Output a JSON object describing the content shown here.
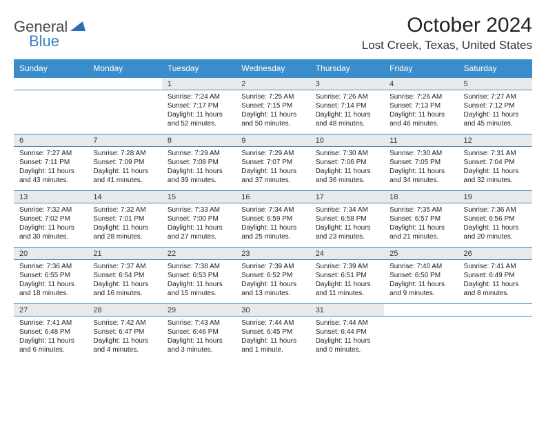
{
  "logo": {
    "text1": "General",
    "text2": "Blue"
  },
  "title": "October 2024",
  "location": "Lost Creek, Texas, United States",
  "colors": {
    "header_bg": "#3a8ccb",
    "header_text": "#ffffff",
    "date_bg": "#e9e9e9",
    "border": "#3a8ccb",
    "logo_gray": "#4a4a4a",
    "logo_blue": "#3a7fc4"
  },
  "fonts": {
    "title_size": 30,
    "location_size": 17,
    "header_size": 12,
    "datenum_size": 11,
    "detail_size": 10
  },
  "day_headers": [
    "Sunday",
    "Monday",
    "Tuesday",
    "Wednesday",
    "Thursday",
    "Friday",
    "Saturday"
  ],
  "weeks": [
    [
      {
        "num": "",
        "lines": [
          "",
          "",
          "",
          ""
        ]
      },
      {
        "num": "",
        "lines": [
          "",
          "",
          "",
          ""
        ]
      },
      {
        "num": "1",
        "lines": [
          "Sunrise: 7:24 AM",
          "Sunset: 7:17 PM",
          "Daylight: 11 hours",
          "and 52 minutes."
        ]
      },
      {
        "num": "2",
        "lines": [
          "Sunrise: 7:25 AM",
          "Sunset: 7:15 PM",
          "Daylight: 11 hours",
          "and 50 minutes."
        ]
      },
      {
        "num": "3",
        "lines": [
          "Sunrise: 7:26 AM",
          "Sunset: 7:14 PM",
          "Daylight: 11 hours",
          "and 48 minutes."
        ]
      },
      {
        "num": "4",
        "lines": [
          "Sunrise: 7:26 AM",
          "Sunset: 7:13 PM",
          "Daylight: 11 hours",
          "and 46 minutes."
        ]
      },
      {
        "num": "5",
        "lines": [
          "Sunrise: 7:27 AM",
          "Sunset: 7:12 PM",
          "Daylight: 11 hours",
          "and 45 minutes."
        ]
      }
    ],
    [
      {
        "num": "6",
        "lines": [
          "Sunrise: 7:27 AM",
          "Sunset: 7:11 PM",
          "Daylight: 11 hours",
          "and 43 minutes."
        ]
      },
      {
        "num": "7",
        "lines": [
          "Sunrise: 7:28 AM",
          "Sunset: 7:09 PM",
          "Daylight: 11 hours",
          "and 41 minutes."
        ]
      },
      {
        "num": "8",
        "lines": [
          "Sunrise: 7:29 AM",
          "Sunset: 7:08 PM",
          "Daylight: 11 hours",
          "and 39 minutes."
        ]
      },
      {
        "num": "9",
        "lines": [
          "Sunrise: 7:29 AM",
          "Sunset: 7:07 PM",
          "Daylight: 11 hours",
          "and 37 minutes."
        ]
      },
      {
        "num": "10",
        "lines": [
          "Sunrise: 7:30 AM",
          "Sunset: 7:06 PM",
          "Daylight: 11 hours",
          "and 36 minutes."
        ]
      },
      {
        "num": "11",
        "lines": [
          "Sunrise: 7:30 AM",
          "Sunset: 7:05 PM",
          "Daylight: 11 hours",
          "and 34 minutes."
        ]
      },
      {
        "num": "12",
        "lines": [
          "Sunrise: 7:31 AM",
          "Sunset: 7:04 PM",
          "Daylight: 11 hours",
          "and 32 minutes."
        ]
      }
    ],
    [
      {
        "num": "13",
        "lines": [
          "Sunrise: 7:32 AM",
          "Sunset: 7:02 PM",
          "Daylight: 11 hours",
          "and 30 minutes."
        ]
      },
      {
        "num": "14",
        "lines": [
          "Sunrise: 7:32 AM",
          "Sunset: 7:01 PM",
          "Daylight: 11 hours",
          "and 28 minutes."
        ]
      },
      {
        "num": "15",
        "lines": [
          "Sunrise: 7:33 AM",
          "Sunset: 7:00 PM",
          "Daylight: 11 hours",
          "and 27 minutes."
        ]
      },
      {
        "num": "16",
        "lines": [
          "Sunrise: 7:34 AM",
          "Sunset: 6:59 PM",
          "Daylight: 11 hours",
          "and 25 minutes."
        ]
      },
      {
        "num": "17",
        "lines": [
          "Sunrise: 7:34 AM",
          "Sunset: 6:58 PM",
          "Daylight: 11 hours",
          "and 23 minutes."
        ]
      },
      {
        "num": "18",
        "lines": [
          "Sunrise: 7:35 AM",
          "Sunset: 6:57 PM",
          "Daylight: 11 hours",
          "and 21 minutes."
        ]
      },
      {
        "num": "19",
        "lines": [
          "Sunrise: 7:36 AM",
          "Sunset: 6:56 PM",
          "Daylight: 11 hours",
          "and 20 minutes."
        ]
      }
    ],
    [
      {
        "num": "20",
        "lines": [
          "Sunrise: 7:36 AM",
          "Sunset: 6:55 PM",
          "Daylight: 11 hours",
          "and 18 minutes."
        ]
      },
      {
        "num": "21",
        "lines": [
          "Sunrise: 7:37 AM",
          "Sunset: 6:54 PM",
          "Daylight: 11 hours",
          "and 16 minutes."
        ]
      },
      {
        "num": "22",
        "lines": [
          "Sunrise: 7:38 AM",
          "Sunset: 6:53 PM",
          "Daylight: 11 hours",
          "and 15 minutes."
        ]
      },
      {
        "num": "23",
        "lines": [
          "Sunrise: 7:39 AM",
          "Sunset: 6:52 PM",
          "Daylight: 11 hours",
          "and 13 minutes."
        ]
      },
      {
        "num": "24",
        "lines": [
          "Sunrise: 7:39 AM",
          "Sunset: 6:51 PM",
          "Daylight: 11 hours",
          "and 11 minutes."
        ]
      },
      {
        "num": "25",
        "lines": [
          "Sunrise: 7:40 AM",
          "Sunset: 6:50 PM",
          "Daylight: 11 hours",
          "and 9 minutes."
        ]
      },
      {
        "num": "26",
        "lines": [
          "Sunrise: 7:41 AM",
          "Sunset: 6:49 PM",
          "Daylight: 11 hours",
          "and 8 minutes."
        ]
      }
    ],
    [
      {
        "num": "27",
        "lines": [
          "Sunrise: 7:41 AM",
          "Sunset: 6:48 PM",
          "Daylight: 11 hours",
          "and 6 minutes."
        ]
      },
      {
        "num": "28",
        "lines": [
          "Sunrise: 7:42 AM",
          "Sunset: 6:47 PM",
          "Daylight: 11 hours",
          "and 4 minutes."
        ]
      },
      {
        "num": "29",
        "lines": [
          "Sunrise: 7:43 AM",
          "Sunset: 6:46 PM",
          "Daylight: 11 hours",
          "and 3 minutes."
        ]
      },
      {
        "num": "30",
        "lines": [
          "Sunrise: 7:44 AM",
          "Sunset: 6:45 PM",
          "Daylight: 11 hours",
          "and 1 minute."
        ]
      },
      {
        "num": "31",
        "lines": [
          "Sunrise: 7:44 AM",
          "Sunset: 6:44 PM",
          "Daylight: 11 hours",
          "and 0 minutes."
        ]
      },
      {
        "num": "",
        "lines": [
          "",
          "",
          "",
          ""
        ]
      },
      {
        "num": "",
        "lines": [
          "",
          "",
          "",
          ""
        ]
      }
    ]
  ]
}
